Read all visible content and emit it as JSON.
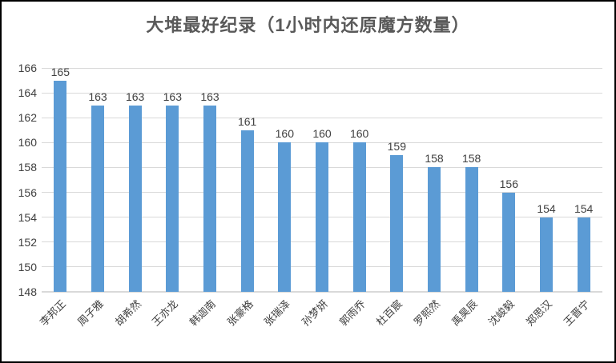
{
  "chart_data": {
    "type": "bar",
    "title": "大堆最好纪录（1小时内还原魔方数量）",
    "categories": [
      "李邦正",
      "周子雅",
      "胡希然",
      "王亦龙",
      "韩迦南",
      "张豪格",
      "张瑞泽",
      "孙梦妍",
      "郭雨乔",
      "杜百宸",
      "罗熙然",
      "禹昊辰",
      "沈峻毅",
      "郑思汉",
      "王晋宁"
    ],
    "values": [
      165,
      163,
      163,
      163,
      163,
      161,
      160,
      160,
      160,
      159,
      158,
      158,
      156,
      154,
      154
    ],
    "xlabel": "",
    "ylabel": "",
    "ylim": [
      148,
      166
    ],
    "ytick_step": 2,
    "yticks": [
      148,
      150,
      152,
      154,
      156,
      158,
      160,
      162,
      164,
      166
    ],
    "grid": true,
    "legend": false,
    "data_labels": true,
    "bar_color": "#5B9BD5",
    "gridline_color": "#D9D9D9",
    "axis_line_color": "#D9D9D9",
    "tick_label_color": "#404040",
    "data_label_color": "#404040",
    "title_color": "#595959",
    "frame_border_color": "#000000",
    "background_color": "#FFFFFF"
  }
}
